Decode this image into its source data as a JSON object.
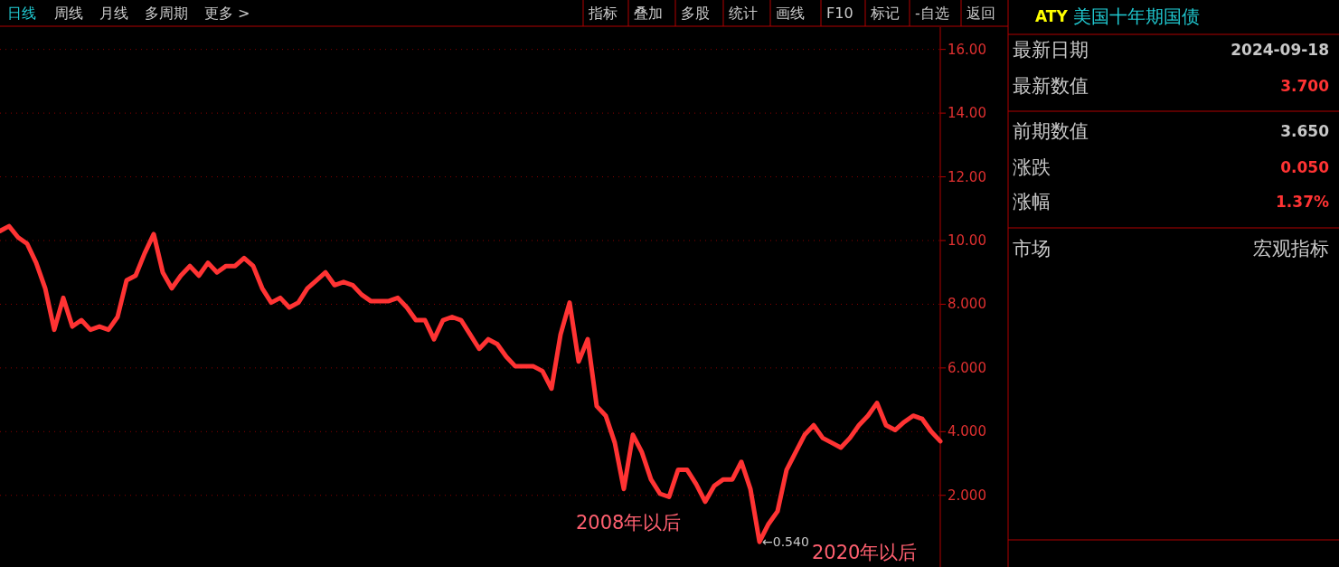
{
  "chart_data": [
    {
      "type": "line",
      "categories": [
        null,
        null,
        null,
        null,
        null,
        null,
        null,
        null,
        null,
        null,
        null,
        null,
        null,
        null,
        null,
        null,
        null,
        null,
        null,
        null,
        null,
        null,
        null,
        null,
        null,
        null,
        null,
        null,
        null,
        null,
        null,
        null,
        null,
        null,
        null,
        null,
        null,
        null,
        null,
        null,
        null,
        null,
        null,
        null,
        null,
        null,
        null,
        null,
        null,
        null,
        null,
        null,
        null,
        null,
        null,
        null,
        null,
        null,
        null,
        null,
        null,
        null,
        null,
        null,
        null,
        null,
        null,
        null,
        null,
        null,
        null,
        null,
        null,
        null,
        null,
        null,
        null,
        null,
        null,
        null,
        null,
        null,
        null,
        null,
        null,
        null,
        null,
        null,
        null,
        null,
        null,
        null,
        null,
        null,
        null,
        null,
        null,
        null,
        null,
        null,
        null,
        null,
        null,
        null,
        null
      ],
      "series": [
        {
          "color": "#ff3333",
          "values": [
            10.3,
            10.45,
            10.1,
            9.9,
            9.3,
            8.5,
            7.2,
            8.2,
            7.3,
            7.5,
            7.2,
            7.3,
            7.2,
            7.6,
            8.75,
            8.9,
            9.6,
            10.2,
            9.0,
            8.5,
            8.9,
            9.2,
            8.9,
            9.3,
            9.0,
            9.2,
            9.2,
            9.45,
            9.2,
            8.5,
            8.05,
            8.2,
            7.9,
            8.05,
            8.5,
            8.75,
            9.0,
            8.6,
            8.7,
            8.6,
            8.3,
            8.1,
            8.1,
            8.1,
            8.2,
            7.9,
            7.5,
            7.5,
            6.9,
            7.5,
            7.6,
            7.5,
            7.05,
            6.6,
            6.9,
            6.75,
            6.35,
            6.05,
            6.05,
            6.05,
            5.9,
            5.35,
            7.05,
            8.05,
            6.2,
            6.9,
            4.8,
            4.5,
            3.65,
            2.2,
            3.9,
            3.35,
            2.5,
            2.05,
            1.95,
            2.8,
            2.8,
            2.35,
            1.8,
            2.3,
            2.5,
            2.5,
            3.05,
            2.2,
            0.54,
            1.1,
            1.5,
            2.8,
            3.35,
            3.9,
            4.2,
            3.8,
            3.65,
            3.5,
            3.8,
            4.2,
            4.5,
            4.9,
            4.2,
            4.05,
            4.3,
            4.5,
            4.4,
            4.0,
            3.7
          ]
        }
      ],
      "ylim": [
        -0.25,
        16.7
      ],
      "yticks": [
        {
          "value": 2,
          "label": "2.000"
        },
        {
          "value": 4,
          "label": "4.000"
        },
        {
          "value": 6,
          "label": "6.000"
        },
        {
          "value": 8,
          "label": "8.000"
        },
        {
          "value": 10,
          "label": "10.00"
        },
        {
          "value": 12,
          "label": "12.00"
        },
        {
          "value": 14,
          "label": "14.00"
        },
        {
          "value": 16,
          "label": "16.00"
        }
      ],
      "grid": "y",
      "tick_labels": "y",
      "annotations": [
        "2008年以后",
        "2020年以后",
        "←0.540"
      ]
    },
    {
      "type": "other",
      "title": "美国十年期国债",
      "subtitle": "ATY",
      "annotations": [
        "最新日期",
        "2024-09-18",
        "最新数值",
        "3.700",
        "前期数值",
        "3.650",
        "涨跌",
        "0.050",
        "涨幅",
        "1.37%",
        "市场",
        "宏观指标"
      ],
      "colors": [
        "#c8c8c8",
        "#c8c8c8",
        "#c8c8c8",
        "#ff3333",
        "#c8c8c8",
        "#c8c8c8",
        "#c8c8c8",
        "#ff3333",
        "#c8c8c8",
        "#ff3333",
        "#c8c8c8",
        "#c8c8c8"
      ]
    },
    {
      "type": "other",
      "annotations": [
        "日线",
        "周线",
        "月线",
        "多周期",
        "更多 >",
        "指标",
        "叠加",
        "多股",
        "统计",
        "画线",
        "F10",
        "标记",
        "-自选",
        "返回"
      ]
    }
  ]
}
